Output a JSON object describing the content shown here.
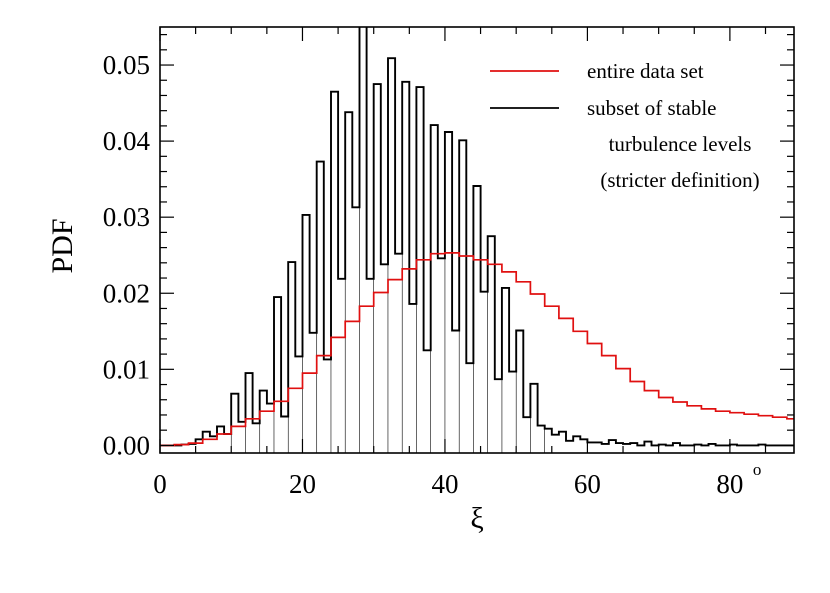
{
  "chart_data": {
    "type": "line",
    "xlabel": "ξ",
    "ylabel": "PDF",
    "xlim": [
      0,
      89
    ],
    "ylim": [
      -0.001,
      0.055
    ],
    "x_ticks": [
      "0",
      "20",
      "40",
      "60",
      "80"
    ],
    "x_tick_values": [
      0,
      20,
      40,
      60,
      80
    ],
    "degree_mark": "o",
    "y_ticks": [
      "0.00",
      "0.01",
      "0.02",
      "0.03",
      "0.04",
      "0.05"
    ],
    "y_tick_values": [
      0,
      0.01,
      0.02,
      0.03,
      0.04,
      0.05
    ],
    "grid": false,
    "legend_position": "top-right",
    "series": [
      {
        "name": "entire data set",
        "color": "#e01010",
        "style": "step",
        "x": [
          0,
          2,
          4,
          6,
          8,
          10,
          12,
          14,
          16,
          18,
          20,
          22,
          24,
          26,
          28,
          30,
          32,
          34,
          36,
          38,
          40,
          42,
          44,
          46,
          48,
          50,
          52,
          54,
          56,
          58,
          60,
          62,
          64,
          66,
          68,
          70,
          72,
          74,
          76,
          78,
          80,
          82,
          84,
          86,
          88
        ],
        "values": [
          0.0,
          0.0001,
          0.0003,
          0.0008,
          0.0015,
          0.0025,
          0.0035,
          0.0045,
          0.0058,
          0.0075,
          0.0095,
          0.0118,
          0.0142,
          0.0163,
          0.0183,
          0.0201,
          0.0218,
          0.0232,
          0.0244,
          0.0252,
          0.0253,
          0.0249,
          0.0244,
          0.0238,
          0.0228,
          0.0215,
          0.0199,
          0.0183,
          0.0167,
          0.015,
          0.0134,
          0.0118,
          0.0101,
          0.0084,
          0.0072,
          0.0063,
          0.0057,
          0.0052,
          0.0048,
          0.0045,
          0.0043,
          0.0041,
          0.0039,
          0.0037,
          0.0035
        ]
      },
      {
        "name": "subset of stable turbulence levels (stricter definition)",
        "color": "#000000",
        "style": "step",
        "x": [
          0,
          1,
          2,
          3,
          4,
          5,
          6,
          7,
          8,
          9,
          10,
          11,
          12,
          13,
          14,
          15,
          16,
          17,
          18,
          19,
          20,
          21,
          22,
          23,
          24,
          25,
          26,
          27,
          28,
          29,
          30,
          31,
          32,
          33,
          34,
          35,
          36,
          37,
          38,
          39,
          40,
          41,
          42,
          43,
          44,
          45,
          46,
          47,
          48,
          49,
          50,
          51,
          52,
          53,
          54,
          55,
          56,
          57,
          58,
          59,
          60,
          61,
          62,
          63,
          64,
          65,
          66,
          67,
          68,
          69,
          70,
          71,
          72,
          73,
          74,
          75,
          76,
          77,
          78,
          79,
          80,
          81,
          82,
          83,
          84,
          85,
          86,
          87,
          88
        ],
        "values": [
          0.0,
          0.0,
          0.0,
          0.0001,
          0.0002,
          0.0008,
          0.0018,
          0.0012,
          0.0025,
          0.0015,
          0.0068,
          0.0031,
          0.0095,
          0.0029,
          0.0072,
          0.0055,
          0.0195,
          0.0038,
          0.0241,
          0.0117,
          0.0303,
          0.0148,
          0.0373,
          0.0113,
          0.0465,
          0.0219,
          0.0438,
          0.0313,
          0.0552,
          0.0219,
          0.0475,
          0.0238,
          0.0509,
          0.0252,
          0.0478,
          0.0186,
          0.0471,
          0.0125,
          0.0421,
          0.0246,
          0.0412,
          0.0151,
          0.0401,
          0.0108,
          0.0341,
          0.0202,
          0.0275,
          0.0087,
          0.0207,
          0.0097,
          0.0151,
          0.0037,
          0.0081,
          0.0026,
          0.0022,
          0.0014,
          0.0018,
          0.0006,
          0.0012,
          0.0008,
          0.0004,
          0.0004,
          0.0002,
          0.0007,
          0.0003,
          0.0002,
          0.0003,
          0.0,
          0.0005,
          0.0,
          0.0001,
          0.0,
          0.0003,
          0.0,
          0.0,
          0.0001,
          0.0,
          0.0002,
          0.0,
          0.0,
          0.0001,
          0.0,
          0.0,
          0.0,
          0.0001,
          0.0,
          0.0,
          0.0,
          0.0
        ]
      }
    ]
  },
  "legend": {
    "entries": [
      {
        "lines": [
          "entire data set"
        ],
        "color": "#e01010"
      },
      {
        "lines": [
          "subset of stable",
          "turbulence levels",
          "(stricter definition)"
        ],
        "color": "#000000"
      }
    ]
  }
}
